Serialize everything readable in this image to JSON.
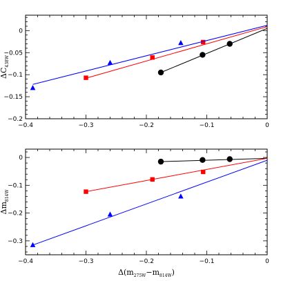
{
  "chart_data": [
    {
      "type": "scatter",
      "ylabel": {
        "main": "ΔC",
        "sub": "438W"
      },
      "xlim": [
        -0.4,
        0
      ],
      "ylim": [
        -0.2,
        0.035
      ],
      "x_ticks": [
        -0.4,
        -0.3,
        -0.2,
        -0.1,
        0
      ],
      "x_tick_labels": [
        "−0.4",
        "−0.3",
        "−0.2",
        "−0.1",
        "0"
      ],
      "y_ticks": [
        -0.2,
        -0.15,
        -0.1,
        -0.05,
        0
      ],
      "y_tick_labels": [
        "−0.2",
        "−0.15",
        "−0.1",
        "−0.05",
        "0"
      ],
      "series": [
        {
          "marker": "circle",
          "color": "#000000",
          "x": [
            -0.176,
            -0.107,
            -0.062
          ],
          "y": [
            -0.095,
            -0.055,
            -0.03
          ],
          "fit": {
            "x": [
              -0.176,
              0
            ],
            "y": [
              -0.095,
              0.005
            ]
          }
        },
        {
          "marker": "square",
          "color": "#ff0000",
          "x": [
            -0.3,
            -0.19,
            -0.106
          ],
          "y": [
            -0.107,
            -0.061,
            -0.026
          ],
          "fit": {
            "x": [
              -0.3,
              0
            ],
            "y": [
              -0.108,
              0.009
            ]
          }
        },
        {
          "marker": "triangle",
          "color": "#0000ff",
          "x": [
            -0.388,
            -0.26,
            -0.143
          ],
          "y": [
            -0.13,
            -0.073,
            -0.028
          ],
          "fit": {
            "x": [
              -0.388,
              0
            ],
            "y": [
              -0.122,
              0.012
            ]
          }
        }
      ]
    },
    {
      "type": "scatter",
      "xlabel": {
        "pre": "Δ(m",
        "sub1": "275W",
        "mid": "−m",
        "sub2": "814W",
        "post": ")"
      },
      "ylabel": {
        "main": "Δm",
        "sub": "814W"
      },
      "xlim": [
        -0.4,
        0
      ],
      "ylim": [
        -0.35,
        0.03
      ],
      "x_ticks": [
        -0.4,
        -0.3,
        -0.2,
        -0.1,
        0
      ],
      "x_tick_labels": [
        "−0.4",
        "−0.3",
        "−0.2",
        "−0.1",
        "0"
      ],
      "y_ticks": [
        -0.3,
        -0.2,
        -0.1,
        0
      ],
      "y_tick_labels": [
        "−0.3",
        "−0.2",
        "−0.1",
        "0"
      ],
      "series": [
        {
          "marker": "circle",
          "color": "#000000",
          "x": [
            -0.176,
            -0.107,
            -0.062
          ],
          "y": [
            -0.015,
            -0.009,
            -0.006
          ],
          "fit": {
            "x": [
              -0.176,
              0
            ],
            "y": [
              -0.015,
              -0.003
            ]
          }
        },
        {
          "marker": "square",
          "color": "#ff0000",
          "x": [
            -0.3,
            -0.19,
            -0.106
          ],
          "y": [
            -0.123,
            -0.079,
            -0.052
          ],
          "fit": {
            "x": [
              -0.3,
              0
            ],
            "y": [
              -0.123,
              -0.003
            ]
          }
        },
        {
          "marker": "triangle",
          "color": "#0000ff",
          "x": [
            -0.388,
            -0.26,
            -0.143
          ],
          "y": [
            -0.315,
            -0.205,
            -0.14
          ],
          "fit": {
            "x": [
              -0.388,
              0
            ],
            "y": [
              -0.315,
              -0.01
            ]
          }
        }
      ]
    }
  ]
}
